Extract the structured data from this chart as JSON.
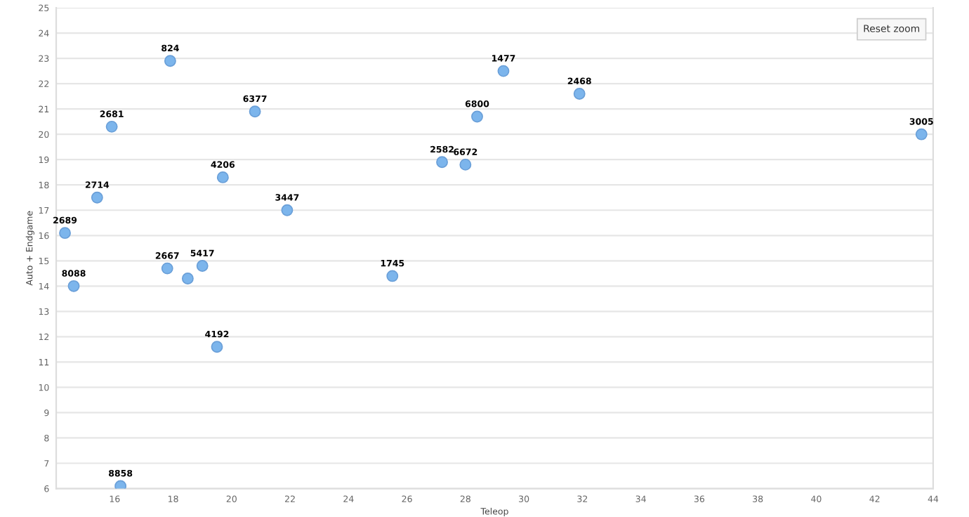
{
  "chart_data": {
    "type": "scatter",
    "xlabel": "Teleop",
    "ylabel": "Auto + Endgame",
    "x": [
      17.9,
      20.8,
      15.9,
      15.4,
      14.3,
      19.7,
      21.9,
      27.2,
      28.0,
      28.4,
      29.3,
      31.9,
      43.6,
      14.6,
      17.8,
      18.5,
      19.0,
      19.5,
      25.5,
      16.2
    ],
    "values": [
      22.9,
      20.9,
      20.3,
      17.5,
      16.1,
      18.3,
      17.0,
      18.9,
      18.8,
      20.7,
      22.5,
      21.6,
      20.0,
      14.0,
      14.7,
      14.3,
      14.8,
      11.6,
      14.4,
      6.1
    ],
    "color": "#7cb5ec",
    "marker": "circle",
    "xlim": [
      14,
      44
    ],
    "xticks": [
      16,
      18,
      20,
      22,
      24,
      26,
      28,
      30,
      32,
      34,
      36,
      38,
      40,
      42,
      44
    ],
    "ylim": [
      6,
      25
    ],
    "yticks": [
      6,
      7,
      8,
      9,
      10,
      11,
      12,
      13,
      14,
      15,
      16,
      17,
      18,
      19,
      20,
      21,
      22,
      23,
      24,
      25
    ],
    "grid": "y",
    "annotations": [
      {
        "text": "824",
        "x": 17.9,
        "y": 22.9
      },
      {
        "text": "6377",
        "x": 20.8,
        "y": 20.9
      },
      {
        "text": "2681",
        "x": 15.9,
        "y": 20.3
      },
      {
        "text": "2714",
        "x": 15.4,
        "y": 17.5
      },
      {
        "text": "2689",
        "x": 14.3,
        "y": 16.1
      },
      {
        "text": "4206",
        "x": 19.7,
        "y": 18.3
      },
      {
        "text": "3447",
        "x": 21.9,
        "y": 17.0
      },
      {
        "text": "2582",
        "x": 27.2,
        "y": 18.9
      },
      {
        "text": "6672",
        "x": 28.0,
        "y": 18.8
      },
      {
        "text": "6800",
        "x": 28.4,
        "y": 20.7
      },
      {
        "text": "1477",
        "x": 29.3,
        "y": 22.5
      },
      {
        "text": "2468",
        "x": 31.9,
        "y": 21.6
      },
      {
        "text": "3005",
        "x": 43.6,
        "y": 20.0
      },
      {
        "text": "8088",
        "x": 14.6,
        "y": 14.0
      },
      {
        "text": "2667",
        "x": 17.8,
        "y": 14.7
      },
      {
        "text": "5417",
        "x": 19.0,
        "y": 14.8
      },
      {
        "text": "4192",
        "x": 19.5,
        "y": 11.6
      },
      {
        "text": "1745",
        "x": 25.5,
        "y": 14.4
      },
      {
        "text": "8858",
        "x": 16.2,
        "y": 6.1
      },
      "Reset zoom"
    ]
  }
}
